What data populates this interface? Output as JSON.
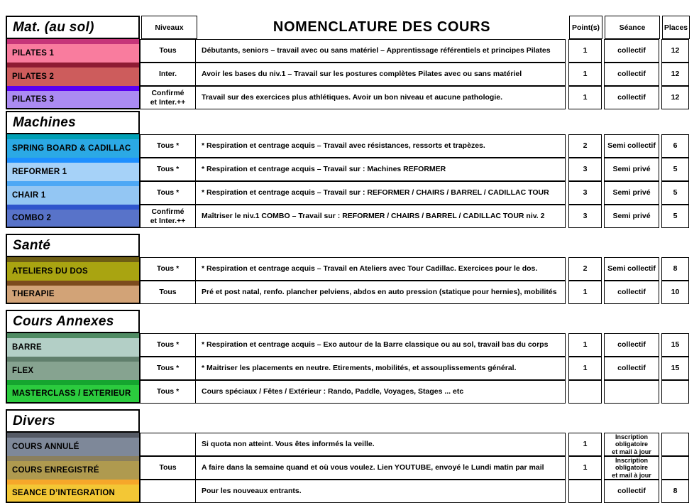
{
  "title": "NOMENCLATURE DES COURS",
  "headers": {
    "niveaux": "Niveaux",
    "points": "Point(s)",
    "seance": "Séance",
    "places": "Places"
  },
  "sections": [
    {
      "label": "Mat. (au sol)",
      "rows": [
        {
          "name": "PILATES 1",
          "strip_color": "#C63579",
          "main_color": "#F97C9E",
          "niveau": "Tous",
          "desc": "Débutants, seniors – travail avec ou sans matériel – Apprentissage référentiels et principes Pilates",
          "points": "1",
          "seance": "collectif",
          "places": "12"
        },
        {
          "name": "PILATES 2",
          "strip_color": "#8E1B33",
          "main_color": "#CD5C5C",
          "niveau": "Inter.",
          "desc": "Avoir les bases du niv.1 – Travail sur les postures complètes Pilates avec ou sans matériel",
          "points": "1",
          "seance": "collectif",
          "places": "12"
        },
        {
          "name": "PILATES 3",
          "strip_color": "#5900F2",
          "main_color": "#AB8BF2",
          "niveau": "Confirmé\net Inter.++",
          "desc": "Travail sur des exercices plus athlétiques. Avoir un bon niveau et aucune pathologie.",
          "points": "1",
          "seance": "collectif",
          "places": "12"
        }
      ]
    },
    {
      "label": "Machines",
      "rows": [
        {
          "name": "SPRING BOARD & CADILLAC",
          "strip_color": "#00A0B5",
          "main_color": "#2BA9E5",
          "niveau": "Tous *",
          "desc": "* Respiration et centrage acquis – Travail avec résistances, ressorts et trapèzes.",
          "points": "2",
          "seance": "Semi collectif",
          "places": "6"
        },
        {
          "name": "REFORMER 1",
          "strip_color": "#1E8FFF",
          "main_color": "#A6D2F8",
          "niveau": "Tous *",
          "desc": "* Respiration et centrage acquis – Travail sur : Machines REFORMER",
          "points": "3",
          "seance": "Semi privé",
          "places": "5"
        },
        {
          "name": "CHAIR 1",
          "strip_color": "#4DA8F5",
          "main_color": "#93C6F3",
          "niveau": "Tous *",
          "desc": "* Respiration et centrage acquis – Travail sur : REFORMER / CHAIRS / BARREL / CADILLAC TOUR",
          "points": "3",
          "seance": "Semi privé",
          "places": "5"
        },
        {
          "name": "COMBO 2",
          "strip_color": "#2F55CC",
          "main_color": "#5873C9",
          "niveau": "Confirmé\net Inter.++",
          "desc": "Maîtriser le niv.1 COMBO  – Travail sur : REFORMER / CHAIRS / BARREL / CADILLAC TOUR niv. 2",
          "points": "3",
          "seance": "Semi privé",
          "places": "5"
        }
      ]
    },
    {
      "label": "Santé",
      "rows": [
        {
          "name": "ATELIERS DU DOS",
          "strip_color": "#6E5E14",
          "main_color": "#A9A411",
          "niveau": "Tous *",
          "desc": "* Respiration et centrage acquis – Travail en Ateliers avec Tour Cadillac. Exercices pour le dos.",
          "points": "2",
          "seance": "Semi collectif",
          "places": "8"
        },
        {
          "name": "THERAPIE",
          "strip_color": "#7C4B1D",
          "main_color": "#D2A377",
          "niveau": "Tous",
          "desc": "Pré et post natal, renfo. plancher pelviens, abdos en auto pression (statique pour hernies), mobilités",
          "points": "1",
          "seance": "collectif",
          "places": "10"
        }
      ]
    },
    {
      "label": "Cours Annexes",
      "rows": [
        {
          "name": "BARRE",
          "strip_color": "#4F8B63",
          "main_color": "#B3CFC6",
          "niveau": "Tous *",
          "desc": "* Respiration et centrage acquis – Exo autour de la Barre classique ou au sol, travail bas du corps",
          "points": "1",
          "seance": "collectif",
          "places": "15"
        },
        {
          "name": "FLEX",
          "strip_color": "#607F6C",
          "main_color": "#86A390",
          "niveau": "Tous *",
          "desc": "* Maitriser les placements en neutre. Etirements, mobilités, et assouplissements général.",
          "points": "1",
          "seance": "collectif",
          "places": "15"
        },
        {
          "name": "MASTERCLASS / EXTERIEUR",
          "strip_color": "#15A52F",
          "main_color": "#2BCB3E",
          "niveau": "Tous *",
          "desc": "Cours spéciaux / Fêtes / Extérieur : Rando, Paddle, Voyages, Stages ... etc",
          "points": "",
          "seance": "",
          "places": ""
        }
      ]
    },
    {
      "label": "Divers",
      "rows": [
        {
          "name": "COURS ANNULÉ",
          "strip_color": "#555A65",
          "main_color": "#7E8899",
          "niveau": "",
          "desc": "Si quota non atteint. Vous êtes informés la veille.",
          "points": "1",
          "seance": "Inscription obligatoire\net mail à jour",
          "places": ""
        },
        {
          "name": "COURS ENREGISTRÉ",
          "strip_color": "#8A7F5E",
          "main_color": "#AF9A4F",
          "niveau": "Tous",
          "desc": "A faire dans la semaine quand et où vous voulez. Lien YOUTUBE, envoyé le Lundi matin par mail",
          "points": "1",
          "seance": "Inscription obligatoire\net mail à jour",
          "places": ""
        },
        {
          "name": "SEANCE D’INTEGRATION",
          "strip_color": "#F6A72A",
          "main_color": "#F3C735",
          "niveau": "",
          "desc": "Pour les nouveaux entrants.",
          "points": "",
          "seance": "collectif",
          "places": "8"
        }
      ]
    }
  ]
}
